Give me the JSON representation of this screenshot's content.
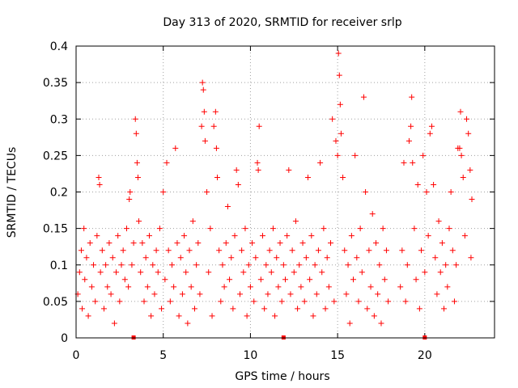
{
  "chart_data": {
    "type": "scatter",
    "title": "Day 313 of 2020, SRMTID for receiver srlp",
    "xlabel": "GPS time / hours",
    "ylabel": "SRMTID / TECUs",
    "xlim": [
      0,
      24
    ],
    "ylim": [
      0,
      0.4
    ],
    "xticks": [
      0,
      5,
      10,
      15,
      20
    ],
    "yticks": [
      0,
      0.05,
      0.1,
      0.15,
      0.2,
      0.25,
      0.3,
      0.35,
      0.4
    ],
    "xtick_labels": [
      "0",
      "5",
      "10",
      "15",
      "20"
    ],
    "ytick_labels": [
      "0",
      "0.05",
      "0.1",
      "0.15",
      "0.2",
      "0.25",
      "0.3",
      "0.35",
      "0.4"
    ],
    "grid": true,
    "marker": "plus",
    "series_color": "#ff0000",
    "series": [
      {
        "points": [
          [
            0.1,
            0.06
          ],
          [
            0.2,
            0.09
          ],
          [
            0.3,
            0.12
          ],
          [
            0.35,
            0.04
          ],
          [
            0.45,
            0.15
          ],
          [
            0.5,
            0.08
          ],
          [
            0.6,
            0.11
          ],
          [
            0.7,
            0.03
          ],
          [
            0.8,
            0.13
          ],
          [
            0.9,
            0.07
          ],
          [
            1.0,
            0.1
          ],
          [
            1.1,
            0.05
          ],
          [
            1.2,
            0.14
          ],
          [
            1.3,
            0.22
          ],
          [
            1.35,
            0.21
          ],
          [
            1.4,
            0.09
          ],
          [
            1.5,
            0.12
          ],
          [
            1.6,
            0.04
          ],
          [
            1.7,
            0.1
          ],
          [
            1.8,
            0.07
          ],
          [
            1.9,
            0.13
          ],
          [
            2.0,
            0.06
          ],
          [
            2.1,
            0.11
          ],
          [
            2.2,
            0.02
          ],
          [
            2.3,
            0.09
          ],
          [
            2.4,
            0.14
          ],
          [
            2.5,
            0.05
          ],
          [
            2.6,
            0.1
          ],
          [
            2.7,
            0.12
          ],
          [
            2.8,
            0.08
          ],
          [
            2.9,
            0.15
          ],
          [
            3.0,
            0.07
          ],
          [
            3.05,
            0.19
          ],
          [
            3.1,
            0.2
          ],
          [
            3.2,
            0.1
          ],
          [
            3.3,
            0.13
          ],
          [
            3.4,
            0.3
          ],
          [
            3.45,
            0.28
          ],
          [
            3.5,
            0.24
          ],
          [
            3.55,
            0.22
          ],
          [
            3.6,
            0.16
          ],
          [
            3.7,
            0.09
          ],
          [
            3.8,
            0.13
          ],
          [
            3.9,
            0.05
          ],
          [
            4.0,
            0.11
          ],
          [
            4.1,
            0.07
          ],
          [
            4.2,
            0.14
          ],
          [
            4.3,
            0.03
          ],
          [
            4.4,
            0.1
          ],
          [
            4.5,
            0.06
          ],
          [
            4.6,
            0.12
          ],
          [
            4.7,
            0.09
          ],
          [
            4.8,
            0.15
          ],
          [
            4.9,
            0.04
          ],
          [
            5.0,
            0.2
          ],
          [
            5.1,
            0.08
          ],
          [
            5.2,
            0.24
          ],
          [
            5.3,
            0.12
          ],
          [
            5.4,
            0.05
          ],
          [
            5.5,
            0.1
          ],
          [
            5.6,
            0.07
          ],
          [
            5.7,
            0.26
          ],
          [
            5.8,
            0.13
          ],
          [
            5.9,
            0.03
          ],
          [
            6.0,
            0.11
          ],
          [
            6.1,
            0.06
          ],
          [
            6.2,
            0.14
          ],
          [
            6.3,
            0.09
          ],
          [
            6.4,
            0.02
          ],
          [
            6.5,
            0.12
          ],
          [
            6.6,
            0.07
          ],
          [
            6.7,
            0.16
          ],
          [
            6.8,
            0.04
          ],
          [
            6.9,
            0.1
          ],
          [
            7.0,
            0.13
          ],
          [
            7.1,
            0.06
          ],
          [
            7.2,
            0.29
          ],
          [
            7.25,
            0.35
          ],
          [
            7.3,
            0.34
          ],
          [
            7.35,
            0.31
          ],
          [
            7.4,
            0.27
          ],
          [
            7.5,
            0.2
          ],
          [
            7.6,
            0.09
          ],
          [
            7.7,
            0.15
          ],
          [
            7.8,
            0.03
          ],
          [
            7.9,
            0.29
          ],
          [
            8.0,
            0.31
          ],
          [
            8.05,
            0.26
          ],
          [
            8.1,
            0.22
          ],
          [
            8.2,
            0.12
          ],
          [
            8.3,
            0.05
          ],
          [
            8.4,
            0.1
          ],
          [
            8.5,
            0.07
          ],
          [
            8.6,
            0.13
          ],
          [
            8.7,
            0.18
          ],
          [
            8.8,
            0.08
          ],
          [
            8.9,
            0.11
          ],
          [
            9.0,
            0.04
          ],
          [
            9.1,
            0.14
          ],
          [
            9.2,
            0.23
          ],
          [
            9.3,
            0.21
          ],
          [
            9.4,
            0.06
          ],
          [
            9.5,
            0.12
          ],
          [
            9.6,
            0.09
          ],
          [
            9.7,
            0.15
          ],
          [
            9.8,
            0.03
          ],
          [
            9.9,
            0.1
          ],
          [
            10.0,
            0.07
          ],
          [
            10.1,
            0.13
          ],
          [
            10.2,
            0.05
          ],
          [
            10.3,
            0.11
          ],
          [
            10.4,
            0.24
          ],
          [
            10.45,
            0.23
          ],
          [
            10.5,
            0.29
          ],
          [
            10.6,
            0.08
          ],
          [
            10.7,
            0.14
          ],
          [
            10.8,
            0.04
          ],
          [
            10.9,
            0.1
          ],
          [
            11.0,
            0.06
          ],
          [
            11.1,
            0.12
          ],
          [
            11.2,
            0.09
          ],
          [
            11.3,
            0.15
          ],
          [
            11.4,
            0.03
          ],
          [
            11.5,
            0.11
          ],
          [
            11.6,
            0.07
          ],
          [
            11.7,
            0.13
          ],
          [
            11.8,
            0.05
          ],
          [
            11.9,
            0.1
          ],
          [
            12.0,
            0.08
          ],
          [
            12.1,
            0.14
          ],
          [
            12.2,
            0.23
          ],
          [
            12.3,
            0.06
          ],
          [
            12.4,
            0.12
          ],
          [
            12.5,
            0.09
          ],
          [
            12.6,
            0.16
          ],
          [
            12.7,
            0.04
          ],
          [
            12.8,
            0.1
          ],
          [
            12.9,
            0.07
          ],
          [
            13.0,
            0.13
          ],
          [
            13.1,
            0.05
          ],
          [
            13.2,
            0.11
          ],
          [
            13.3,
            0.22
          ],
          [
            13.4,
            0.08
          ],
          [
            13.5,
            0.14
          ],
          [
            13.6,
            0.03
          ],
          [
            13.7,
            0.1
          ],
          [
            13.8,
            0.06
          ],
          [
            13.9,
            0.12
          ],
          [
            14.0,
            0.24
          ],
          [
            14.1,
            0.09
          ],
          [
            14.2,
            0.15
          ],
          [
            14.3,
            0.04
          ],
          [
            14.4,
            0.11
          ],
          [
            14.5,
            0.07
          ],
          [
            14.6,
            0.13
          ],
          [
            14.7,
            0.3
          ],
          [
            14.8,
            0.05
          ],
          [
            14.9,
            0.27
          ],
          [
            15.0,
            0.25
          ],
          [
            15.05,
            0.39
          ],
          [
            15.1,
            0.36
          ],
          [
            15.15,
            0.32
          ],
          [
            15.2,
            0.28
          ],
          [
            15.3,
            0.22
          ],
          [
            15.4,
            0.12
          ],
          [
            15.5,
            0.06
          ],
          [
            15.6,
            0.1
          ],
          [
            15.7,
            0.02
          ],
          [
            15.8,
            0.14
          ],
          [
            15.9,
            0.08
          ],
          [
            16.0,
            0.25
          ],
          [
            16.1,
            0.11
          ],
          [
            16.2,
            0.05
          ],
          [
            16.3,
            0.15
          ],
          [
            16.4,
            0.09
          ],
          [
            16.5,
            0.33
          ],
          [
            16.6,
            0.2
          ],
          [
            16.7,
            0.04
          ],
          [
            16.8,
            0.12
          ],
          [
            16.9,
            0.07
          ],
          [
            17.0,
            0.17
          ],
          [
            17.1,
            0.03
          ],
          [
            17.2,
            0.13
          ],
          [
            17.3,
            0.06
          ],
          [
            17.4,
            0.1
          ],
          [
            17.5,
            0.02
          ],
          [
            17.6,
            0.15
          ],
          [
            17.7,
            0.08
          ],
          [
            17.8,
            0.12
          ],
          [
            17.9,
            0.05
          ],
          [
            18.6,
            0.07
          ],
          [
            18.7,
            0.12
          ],
          [
            18.8,
            0.24
          ],
          [
            18.9,
            0.05
          ],
          [
            19.0,
            0.1
          ],
          [
            19.1,
            0.27
          ],
          [
            19.2,
            0.29
          ],
          [
            19.25,
            0.33
          ],
          [
            19.3,
            0.24
          ],
          [
            19.4,
            0.15
          ],
          [
            19.5,
            0.08
          ],
          [
            19.6,
            0.21
          ],
          [
            19.7,
            0.04
          ],
          [
            19.8,
            0.12
          ],
          [
            19.9,
            0.25
          ],
          [
            20.0,
            0.09
          ],
          [
            20.1,
            0.2
          ],
          [
            20.2,
            0.14
          ],
          [
            20.3,
            0.28
          ],
          [
            20.4,
            0.29
          ],
          [
            20.5,
            0.21
          ],
          [
            20.6,
            0.11
          ],
          [
            20.7,
            0.06
          ],
          [
            20.8,
            0.16
          ],
          [
            20.9,
            0.09
          ],
          [
            21.0,
            0.13
          ],
          [
            21.1,
            0.04
          ],
          [
            21.2,
            0.1
          ],
          [
            21.3,
            0.07
          ],
          [
            21.4,
            0.15
          ],
          [
            21.5,
            0.2
          ],
          [
            21.6,
            0.12
          ],
          [
            21.7,
            0.05
          ],
          [
            21.8,
            0.1
          ],
          [
            21.9,
            0.26
          ],
          [
            22.0,
            0.26
          ],
          [
            22.05,
            0.31
          ],
          [
            22.1,
            0.25
          ],
          [
            22.2,
            0.22
          ],
          [
            22.3,
            0.14
          ],
          [
            22.4,
            0.3
          ],
          [
            22.5,
            0.28
          ],
          [
            22.6,
            0.23
          ],
          [
            22.65,
            0.11
          ],
          [
            22.7,
            0.19
          ]
        ]
      }
    ],
    "zero_markers_x": [
      3.3,
      11.9,
      20.0
    ]
  }
}
